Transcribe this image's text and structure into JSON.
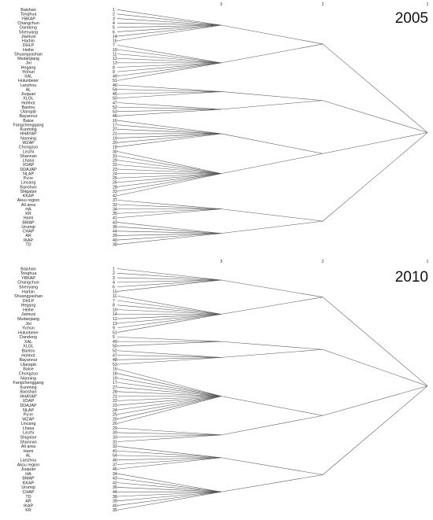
{
  "level_labels": [
    "3",
    "2",
    "1"
  ],
  "panels": [
    {
      "year": "2005",
      "rows": [
        [
          "Baishan",
          "1"
        ],
        [
          "Tonghua",
          "2"
        ],
        [
          "YBKAP",
          "3"
        ],
        [
          "Changchun",
          "4"
        ],
        [
          "Dandong",
          "5"
        ],
        [
          "Shenyang",
          "6"
        ],
        [
          "Jiamusi",
          "14"
        ],
        [
          "Harbin",
          "15"
        ],
        [
          "DHLP",
          "7"
        ],
        [
          "Heihe",
          "10"
        ],
        [
          "Shuangyashan",
          "11"
        ],
        [
          "Mudanjiang",
          "12"
        ],
        [
          "Jixi",
          "13"
        ],
        [
          "Hegang",
          "8"
        ],
        [
          "Yichun",
          "9"
        ],
        [
          "XAL",
          "49"
        ],
        [
          "Hulunbeier",
          "51"
        ],
        [
          "Lanzhou",
          "46"
        ],
        [
          "AL",
          "54"
        ],
        [
          "Jiuquan",
          "45"
        ],
        [
          "XLGL",
          "50"
        ],
        [
          "Hohhot",
          "47"
        ],
        [
          "Baotou",
          "52"
        ],
        [
          "Ulanqab",
          "53"
        ],
        [
          "Bayannur",
          "48"
        ],
        [
          "Baise",
          "16"
        ],
        [
          "Fangchenggang",
          "17"
        ],
        [
          "Kunming",
          "27"
        ],
        [
          "HHAYAP",
          "21"
        ],
        [
          "Nanning",
          "19"
        ],
        [
          "WZAP",
          "20"
        ],
        [
          "Chongzuo",
          "18"
        ],
        [
          "Linzhi",
          "30"
        ],
        [
          "Shannan",
          "31"
        ],
        [
          "Lhasa",
          "29"
        ],
        [
          "XDAP",
          "22"
        ],
        [
          "DDAJAP",
          "23"
        ],
        [
          "NLAP",
          "24"
        ],
        [
          "Pu'er",
          "25"
        ],
        [
          "Lincang",
          "26"
        ],
        [
          "Baoshan",
          "28"
        ],
        [
          "Shigatse",
          "33"
        ],
        [
          "KKAP",
          "42"
        ],
        [
          "Aksu region",
          "37"
        ],
        [
          "Ali area",
          "32"
        ],
        [
          "HA",
          "34"
        ],
        [
          "KR",
          "35"
        ],
        [
          "Hami",
          "41"
        ],
        [
          "BMAP",
          "43"
        ],
        [
          "Urumqi",
          "36"
        ],
        [
          "CHAP",
          "44"
        ],
        [
          "AR",
          "39"
        ],
        [
          "IKAP",
          "40"
        ],
        [
          "TD",
          "38"
        ]
      ],
      "groups": [
        {
          "rows": [
            0,
            8
          ]
        },
        {
          "rows": [
            8,
            17
          ]
        },
        {
          "rows": [
            17,
            21
          ]
        },
        {
          "rows": [
            21,
            25
          ]
        },
        {
          "rows": [
            25,
            32
          ]
        },
        {
          "rows": [
            32,
            43
          ]
        },
        {
          "rows": [
            43,
            48
          ]
        },
        {
          "rows": [
            48,
            54
          ]
        }
      ],
      "clusters": [
        {
          "groups": [
            0,
            1
          ]
        },
        {
          "groups": [
            2,
            3
          ]
        },
        {
          "groups": [
            4,
            5
          ]
        },
        {
          "groups": [
            6,
            7
          ]
        }
      ]
    },
    {
      "year": "2010",
      "rows": [
        [
          "Baishan",
          "1"
        ],
        [
          "Tonghua",
          "2"
        ],
        [
          "YBKAP",
          "3"
        ],
        [
          "Changchun",
          "4"
        ],
        [
          "Shenyang",
          "6"
        ],
        [
          "Harbin",
          "15"
        ],
        [
          "Shuangyashan",
          "11"
        ],
        [
          "DHLP",
          "7"
        ],
        [
          "Hegang",
          "8"
        ],
        [
          "Heihe",
          "10"
        ],
        [
          "Jiamusi",
          "14"
        ],
        [
          "Mudanjiang",
          "12"
        ],
        [
          "Jixi",
          "13"
        ],
        [
          "Yichun",
          "9"
        ],
        [
          "Hulunbeier",
          "51"
        ],
        [
          "Dandong",
          "5"
        ],
        [
          "XAL",
          "49"
        ],
        [
          "XLGL",
          "50"
        ],
        [
          "Baotou",
          "52"
        ],
        [
          "Hohhot",
          "47"
        ],
        [
          "Bayannur",
          "48"
        ],
        [
          "Ulanqab",
          "53"
        ],
        [
          "Baise",
          "16"
        ],
        [
          "Chongzuo",
          "18"
        ],
        [
          "Nanning",
          "19"
        ],
        [
          "Fangchenggang",
          "17"
        ],
        [
          "Kunming",
          "27"
        ],
        [
          "Baoshan",
          "28"
        ],
        [
          "HHAYAP",
          "21"
        ],
        [
          "XDAP",
          "22"
        ],
        [
          "DDAJAP",
          "23"
        ],
        [
          "NLAP",
          "24"
        ],
        [
          "Pu'er",
          "25"
        ],
        [
          "WZAP",
          "20"
        ],
        [
          "Lincang",
          "26"
        ],
        [
          "Lhasa",
          "29"
        ],
        [
          "Linzhi",
          "30"
        ],
        [
          "Shigatse",
          "33"
        ],
        [
          "Shannan",
          "31"
        ],
        [
          "Ali area",
          "32"
        ],
        [
          "Hami",
          "41"
        ],
        [
          "AL",
          "54"
        ],
        [
          "Lanzhou",
          "46"
        ],
        [
          "Aksu region",
          "37"
        ],
        [
          "Jiuquan",
          "45"
        ],
        [
          "HA",
          "34"
        ],
        [
          "BMAP",
          "43"
        ],
        [
          "KKAP",
          "42"
        ],
        [
          "Urumqi",
          "36"
        ],
        [
          "CHAP",
          "44"
        ],
        [
          "TD",
          "38"
        ],
        [
          "AR",
          "39"
        ],
        [
          "IKAP",
          "40"
        ],
        [
          "KR",
          "35"
        ]
      ],
      "groups": [
        {
          "rows": [
            0,
            6
          ]
        },
        {
          "rows": [
            6,
            15
          ]
        },
        {
          "rows": [
            15,
            18
          ]
        },
        {
          "rows": [
            18,
            22
          ]
        },
        {
          "rows": [
            22,
            35
          ]
        },
        {
          "rows": [
            35,
            39
          ]
        },
        {
          "rows": [
            39,
            45
          ]
        },
        {
          "rows": [
            45,
            54
          ]
        }
      ],
      "clusters": [
        {
          "groups": [
            0,
            1
          ]
        },
        {
          "groups": [
            2,
            3
          ]
        },
        {
          "groups": [
            4,
            5
          ]
        },
        {
          "groups": [
            6,
            7
          ]
        }
      ]
    }
  ]
}
